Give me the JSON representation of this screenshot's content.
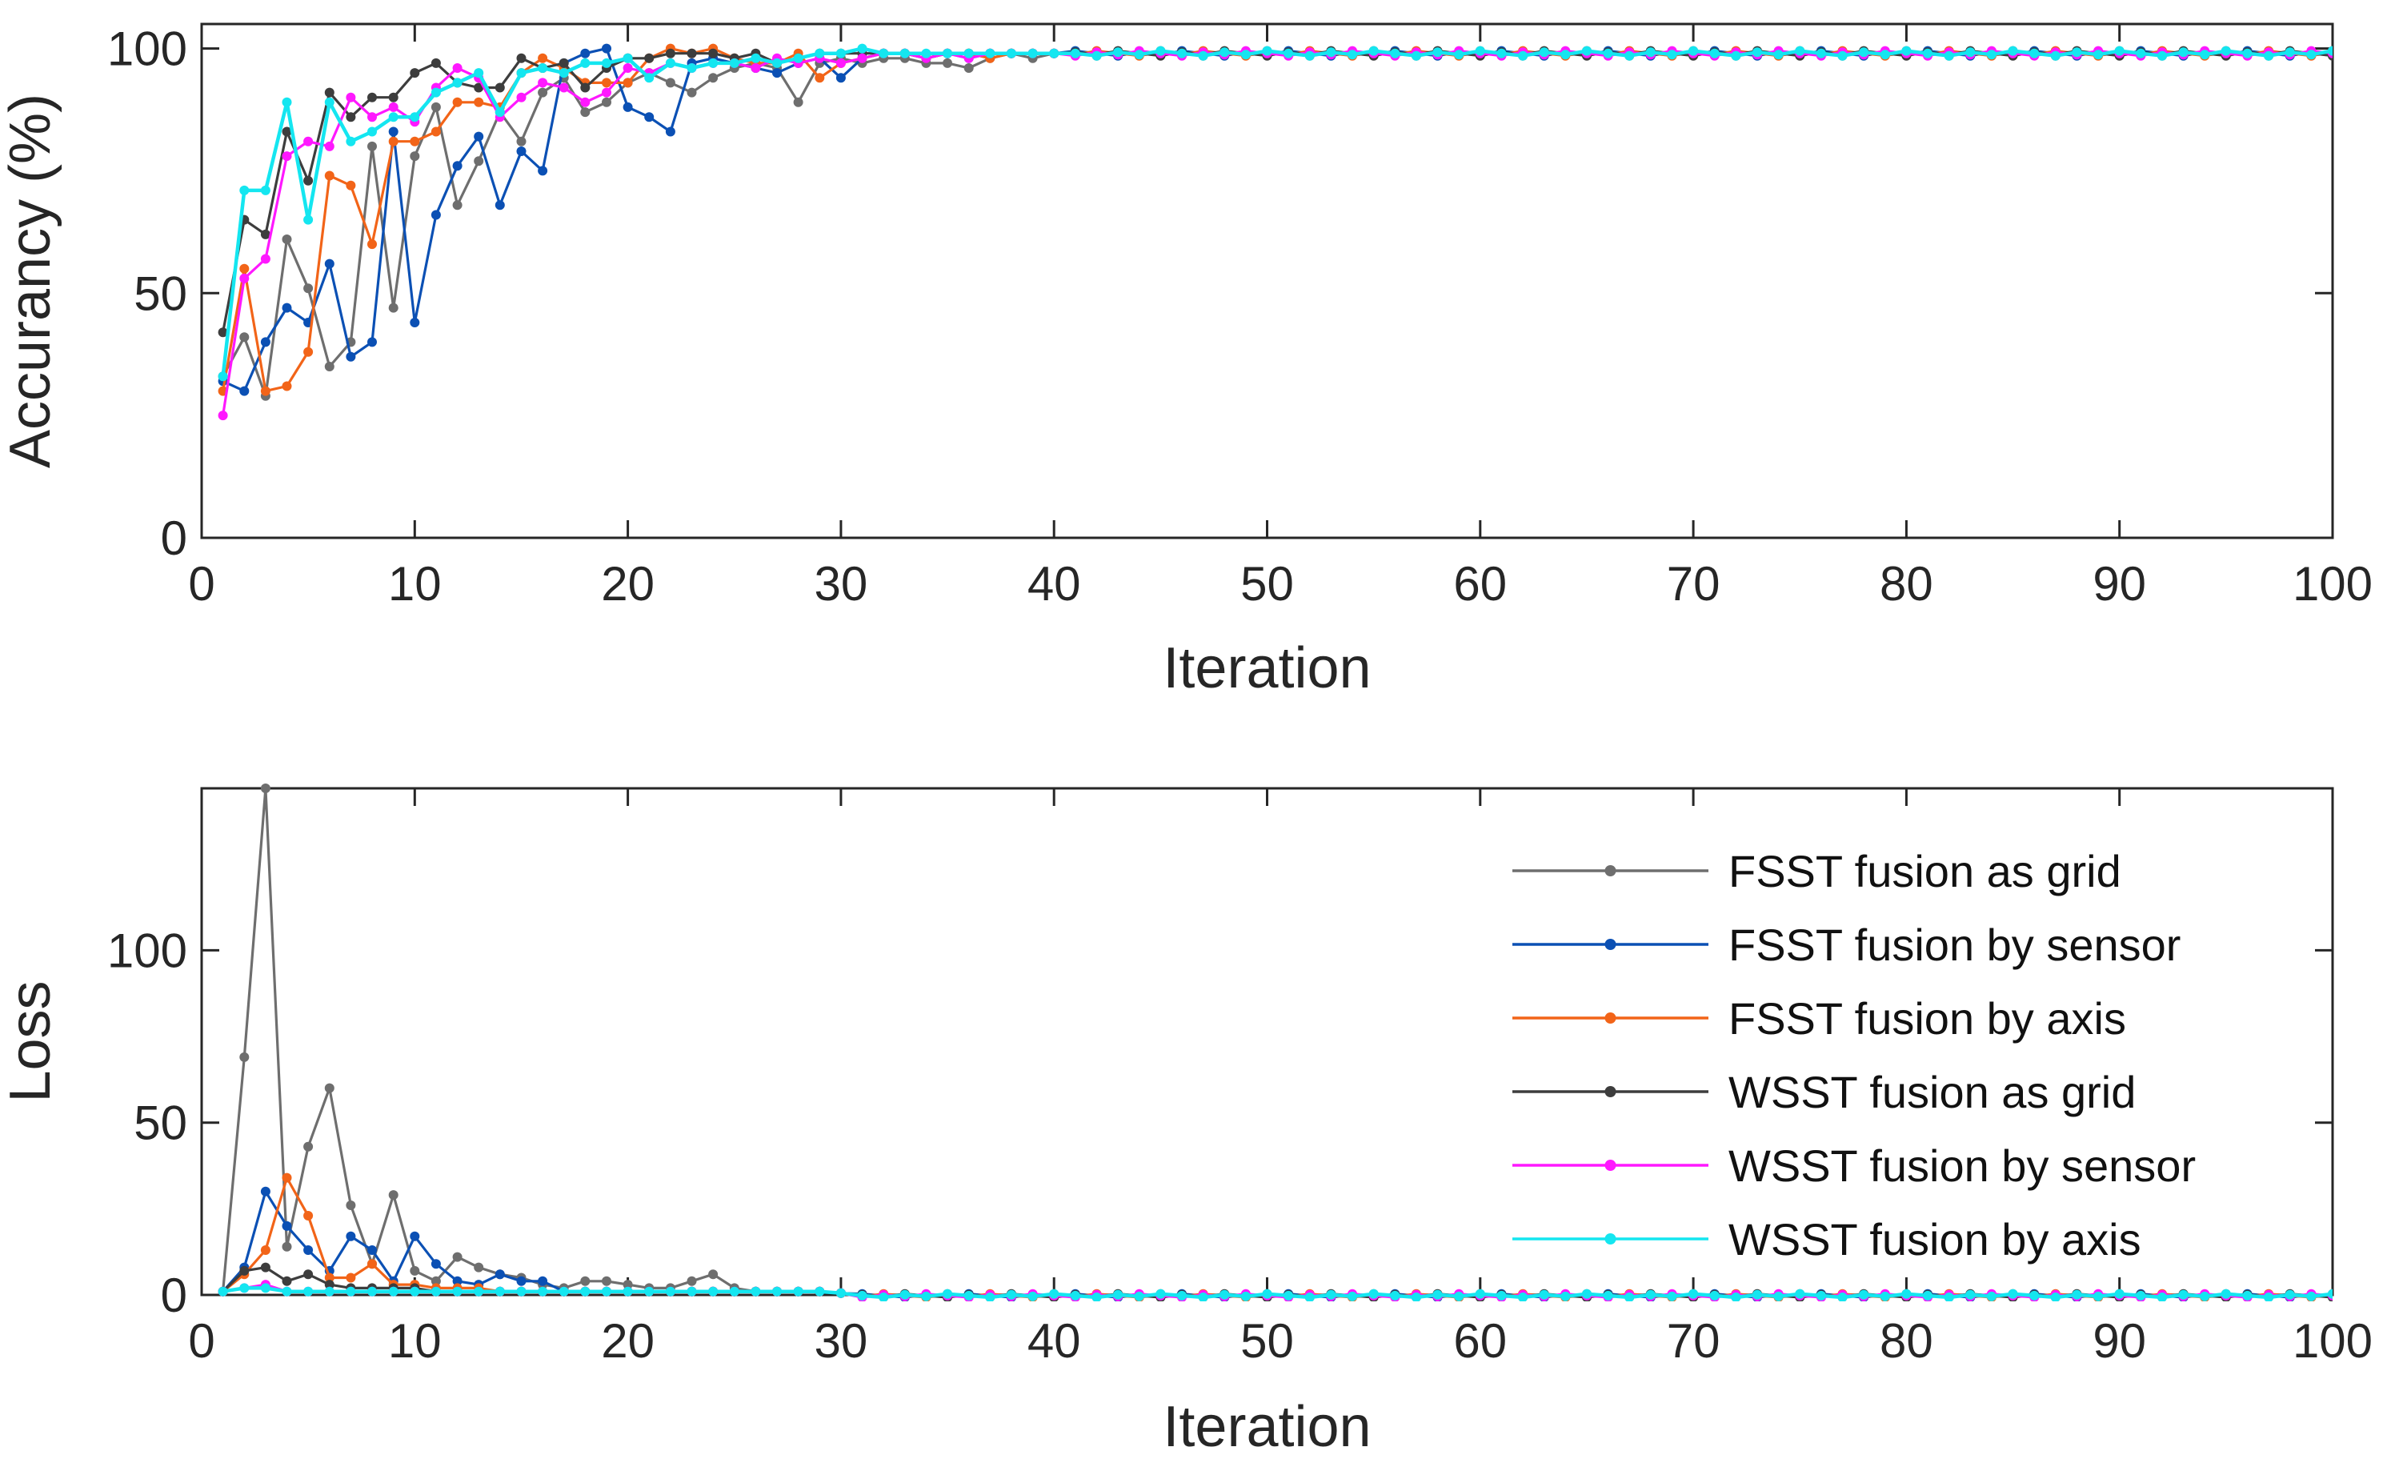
{
  "chart_data": [
    {
      "type": "line",
      "xlabel": "Iteration",
      "ylabel": "Accurancy (%)",
      "xlim": [
        0,
        100
      ],
      "ylim": [
        0,
        105
      ],
      "xticks": [
        0,
        10,
        20,
        30,
        40,
        50,
        60,
        70,
        80,
        90,
        100
      ],
      "yticks": [
        0,
        50,
        100
      ],
      "tail": {
        "from": 41,
        "values": [
          99.5,
          99.5,
          99.5,
          99.5,
          99.5,
          99.5,
          99.5
        ]
      },
      "series": [
        {
          "name": "FSST fusion as grid",
          "color": "#6e6e6e",
          "values": [
            33,
            41,
            29,
            61,
            51,
            35,
            40,
            80,
            47,
            78,
            88,
            68,
            77,
            87,
            81,
            91,
            94,
            87,
            89,
            93,
            95,
            93,
            91,
            94,
            96,
            97,
            96,
            89,
            97,
            98,
            97,
            98,
            98,
            97,
            97,
            96,
            98,
            99,
            98,
            99
          ]
        },
        {
          "name": "FSST fusion by sensor",
          "color": "#0b50b4",
          "values": [
            32,
            30,
            40,
            47,
            44,
            56,
            37,
            40,
            83,
            44,
            66,
            76,
            82,
            68,
            79,
            75,
            97,
            99,
            100,
            88,
            86,
            83,
            97,
            98,
            97,
            96,
            95,
            97,
            98,
            94,
            98,
            99,
            99,
            98,
            99,
            98,
            99,
            99,
            99,
            99
          ]
        },
        {
          "name": "FSST fusion by axis",
          "color": "#f26418",
          "values": [
            30,
            55,
            30,
            31,
            38,
            74,
            72,
            60,
            81,
            81,
            83,
            89,
            89,
            88,
            95,
            98,
            96,
            93,
            93,
            93,
            98,
            100,
            99,
            100,
            98,
            97,
            97,
            99,
            94,
            97,
            98,
            99,
            99,
            98,
            99,
            99,
            98,
            99,
            99,
            99
          ]
        },
        {
          "name": "WSST fusion as grid",
          "color": "#3d3d3d",
          "values": [
            42,
            65,
            62,
            83,
            73,
            91,
            86,
            90,
            90,
            95,
            97,
            93,
            92,
            92,
            98,
            96,
            97,
            92,
            96,
            98,
            98,
            99,
            99,
            99,
            98,
            99,
            97,
            98,
            99,
            99,
            99,
            99,
            99,
            98,
            99,
            99,
            99,
            99,
            99,
            99
          ]
        },
        {
          "name": "WSST fusion by sensor",
          "color": "#ff18ff",
          "values": [
            25,
            53,
            57,
            78,
            81,
            80,
            90,
            86,
            88,
            85,
            92,
            96,
            94,
            86,
            90,
            93,
            92,
            89,
            91,
            96,
            95,
            97,
            96,
            97,
            97,
            96,
            98,
            97,
            98,
            97,
            98,
            99,
            99,
            98,
            99,
            98,
            99,
            99,
            99,
            99
          ]
        },
        {
          "name": "WSST fusion by axis",
          "color": "#14e6f0",
          "values": [
            33,
            71,
            71,
            89,
            65,
            89,
            81,
            83,
            86,
            86,
            91,
            93,
            95,
            87,
            95,
            96,
            95,
            97,
            97,
            98,
            94,
            97,
            96,
            97,
            97,
            98,
            97,
            98,
            99,
            99,
            100,
            99,
            99,
            99,
            99,
            99,
            99,
            99,
            99,
            99
          ]
        }
      ]
    },
    {
      "type": "line",
      "xlabel": "Iteration",
      "ylabel": "Loss",
      "xlim": [
        0,
        100
      ],
      "ylim": [
        0,
        147
      ],
      "xticks": [
        0,
        10,
        20,
        30,
        40,
        50,
        60,
        70,
        80,
        90,
        100
      ],
      "yticks": [
        0,
        50,
        100
      ],
      "legend_position": "right",
      "tail": {
        "from": 31,
        "values": [
          0.3,
          0.3,
          0.3,
          0.3,
          0.3,
          0.3,
          0.3
        ]
      },
      "series": [
        {
          "name": "FSST fusion as grid",
          "color": "#6e6e6e",
          "values": [
            1,
            69,
            147,
            14,
            43,
            60,
            26,
            9,
            29,
            7,
            4,
            11,
            8,
            6,
            5,
            3,
            2,
            4,
            4,
            3,
            2,
            2,
            4,
            6,
            2,
            1,
            1,
            1,
            1,
            0.5
          ]
        },
        {
          "name": "FSST fusion by sensor",
          "color": "#0b50b4",
          "values": [
            1,
            8,
            30,
            20,
            13,
            7,
            17,
            13,
            4,
            17,
            9,
            4,
            3,
            6,
            4,
            4,
            1,
            1,
            1,
            1,
            1,
            1,
            1,
            1,
            1,
            1,
            1,
            1,
            1,
            0.5
          ]
        },
        {
          "name": "FSST fusion by axis",
          "color": "#f26418",
          "values": [
            1,
            6,
            13,
            34,
            23,
            5,
            5,
            9,
            3,
            3,
            2,
            2,
            2,
            1,
            1,
            1,
            1,
            1,
            1,
            1,
            1,
            1,
            1,
            1,
            1,
            1,
            1,
            1,
            1,
            0.5
          ]
        },
        {
          "name": "WSST fusion as grid",
          "color": "#3d3d3d",
          "values": [
            1,
            7,
            8,
            4,
            6,
            3,
            2,
            2,
            2,
            2,
            1,
            1,
            1,
            1,
            1,
            1,
            1,
            1,
            1,
            1,
            1,
            1,
            1,
            1,
            1,
            1,
            1,
            1,
            1,
            0.5
          ]
        },
        {
          "name": "WSST fusion by sensor",
          "color": "#ff18ff",
          "values": [
            1,
            2,
            3,
            1,
            1,
            1,
            1,
            1,
            1,
            1,
            1,
            1,
            1,
            1,
            1,
            1,
            1,
            1,
            1,
            1,
            1,
            1,
            1,
            1,
            1,
            1,
            1,
            1,
            1,
            0.5
          ]
        },
        {
          "name": "WSST fusion by axis",
          "color": "#14e6f0",
          "values": [
            1,
            2,
            2,
            1,
            1,
            1,
            1,
            1,
            1,
            1,
            1,
            1,
            1,
            1,
            1,
            1,
            1,
            1,
            1,
            1,
            1,
            1,
            1,
            1,
            1,
            1,
            1,
            1,
            1,
            0.5
          ]
        }
      ]
    }
  ]
}
